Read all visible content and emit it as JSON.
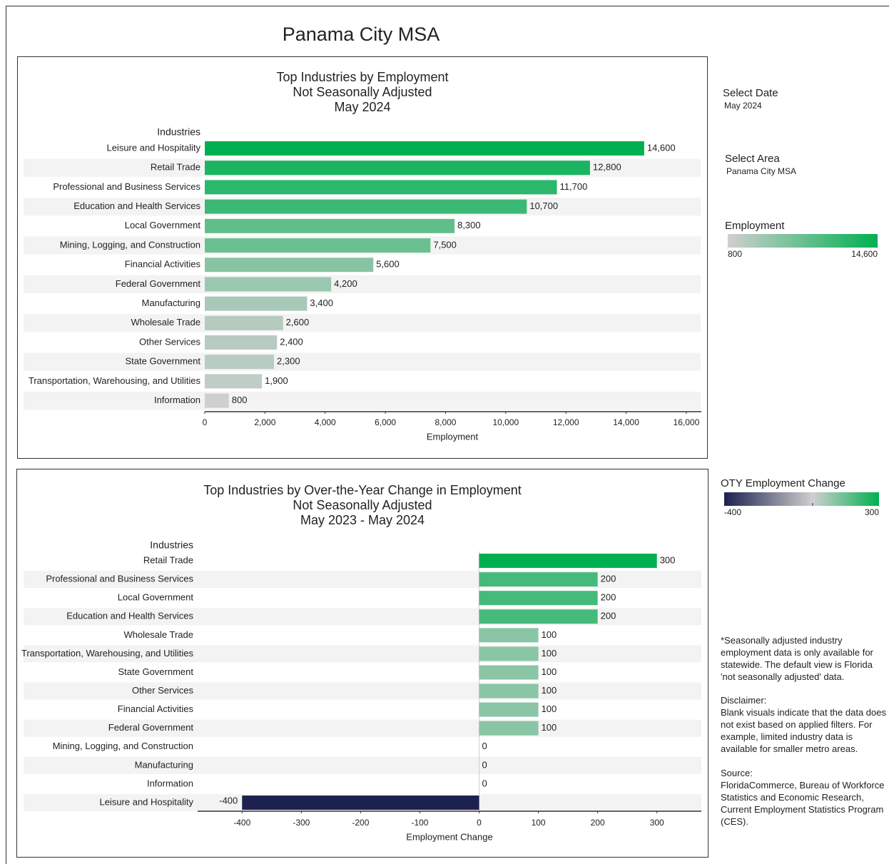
{
  "title": "Panama City MSA",
  "filters": [
    {
      "label": "Select Date",
      "value": "May 2024"
    },
    {
      "label": "Select Area",
      "value": "Panama City MSA"
    }
  ],
  "chart_data": [
    {
      "type": "barh",
      "title": "Top Industries by Employment",
      "subtitle": "Not Seasonally Adjusted",
      "period": "May 2024",
      "category_label": "Industries",
      "xlabel": "Employment",
      "categories": [
        "Leisure and Hospitality",
        "Retail Trade",
        "Professional and Business Services",
        "Education and Health Services",
        "Local Government",
        "Mining, Logging, and Construction",
        "Financial Activities",
        "Federal Government",
        "Manufacturing",
        "Wholesale Trade",
        "Other Services",
        "State Government",
        "Transportation, Warehousing, and Utilities",
        "Information"
      ],
      "values": [
        14600,
        12800,
        11700,
        10700,
        8300,
        7500,
        5600,
        4200,
        3400,
        2600,
        2400,
        2300,
        1900,
        800
      ],
      "value_labels": [
        "14,600",
        "12,800",
        "11,700",
        "10,700",
        "8,300",
        "7,500",
        "5,600",
        "4,200",
        "3,400",
        "2,600",
        "2,400",
        "2,300",
        "1,900",
        "800"
      ],
      "xlim": [
        0,
        16500
      ],
      "xticks": [
        0,
        {
          "value": 2000,
          "label": "2,000"
        },
        {
          "value": 4000,
          "label": "4,000"
        },
        {
          "value": 6000,
          "label": "6,000"
        },
        {
          "value": 8000,
          "label": "8,000"
        },
        {
          "value": 10000,
          "label": "10,000"
        },
        {
          "value": 12000,
          "label": "12,000"
        },
        {
          "value": 14000,
          "label": "14,000"
        },
        {
          "value": 16000,
          "label": "16,000"
        }
      ],
      "row_shading": true,
      "color_scale": {
        "title": "Employment",
        "ticks": [
          800,
          {
            "value": 14600,
            "label": "14,600"
          }
        ],
        "colors": [
          "#cfcfcf",
          "#00b050"
        ]
      }
    },
    {
      "type": "barh",
      "title": "Top Industries by Over-the-Year Change in Employment",
      "subtitle": "Not Seasonally Adjusted",
      "period": "May 2023 - May 2024",
      "category_label": "Industries",
      "xlabel": "Employment Change",
      "categories": [
        "Retail Trade",
        "Professional and Business Services",
        "Local Government",
        "Education and Health Services",
        "Wholesale Trade",
        "Transportation, Warehousing, and Utilities",
        "State Government",
        "Other Services",
        "Financial Activities",
        "Federal Government",
        "Mining, Logging, and Construction",
        "Manufacturing",
        "Information",
        "Leisure and Hospitality"
      ],
      "values": [
        300,
        200,
        200,
        200,
        100,
        100,
        100,
        100,
        100,
        100,
        0,
        0,
        0,
        -400
      ],
      "xlim": [
        -475,
        375
      ],
      "xticks": [
        -400,
        -300,
        -200,
        -100,
        0,
        100,
        200,
        300
      ],
      "row_shading": true,
      "color_scale": {
        "title": "OTY Employment Change",
        "ticks": [
          -400,
          300
        ],
        "center": 0,
        "colors": [
          "#1c2150",
          "#cfcfcf",
          "#00b050"
        ]
      }
    }
  ],
  "notes": {
    "footnote": "*Seasonally adjusted industry employment data is only available for statewide. The default view is Florida 'not seasonally adjusted' data.",
    "disclaimer": {
      "heading": "Disclaimer:",
      "text": "Blank visuals indicate that the data does not exist based on applied filters. For example, limited industry data is available for smaller metro areas."
    },
    "source": {
      "heading": "Source:",
      "text": "FloridaCommerce, Bureau of Workforce Statistics and Economic Research, Current Employment Statistics Program (CES)."
    }
  }
}
